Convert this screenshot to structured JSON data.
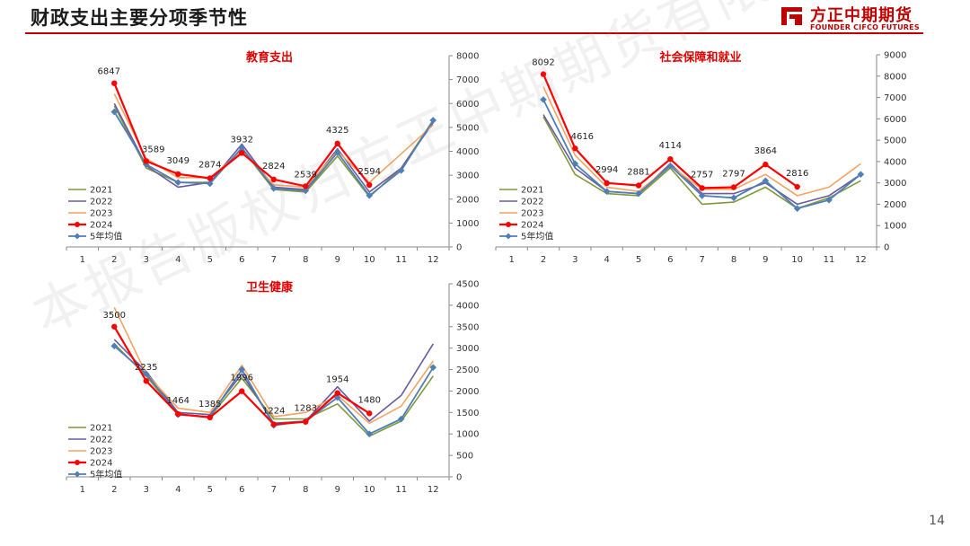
{
  "header": {
    "title": "财政支出主要分项季节性"
  },
  "logo": {
    "name_cn": "方正中期期货",
    "name_en": "FOUNDER CIFCO FUTURES",
    "color": "#c00000"
  },
  "page_number": "14",
  "watermark": "本报告版权归方正中期期货有限公司所有",
  "colors": {
    "2021": "#7f9a3a",
    "2022": "#6a5aa0",
    "2023": "#f4a460",
    "2024": "#ff0000",
    "5年均值": "#4f7fb6"
  },
  "chart_data": [
    {
      "type": "line",
      "title": "教育支出",
      "x": [
        1,
        2,
        3,
        4,
        5,
        6,
        7,
        8,
        9,
        10,
        11,
        12
      ],
      "ylim": [
        0,
        8000
      ],
      "ytick_step": 1000,
      "legend": [
        "2021",
        "2022",
        "2023",
        "2024",
        "5年均值"
      ],
      "series": [
        {
          "name": "2021",
          "values": [
            null,
            5900,
            3300,
            2700,
            2700,
            4100,
            2400,
            2300,
            3800,
            2100,
            3300,
            5300
          ]
        },
        {
          "name": "2022",
          "values": [
            null,
            6000,
            3400,
            2500,
            2700,
            4300,
            2500,
            2400,
            4100,
            2300,
            3300,
            5200
          ]
        },
        {
          "name": "2023",
          "values": [
            null,
            6400,
            3700,
            2900,
            2900,
            4000,
            2600,
            2500,
            4000,
            2700,
            3900,
            5100
          ]
        },
        {
          "name": "2024",
          "values": [
            null,
            6847,
            3589,
            3049,
            2874,
            3932,
            2824,
            2539,
            4325,
            2594,
            null,
            null
          ]
        },
        {
          "name": "5年均值",
          "values": [
            null,
            5650,
            3450,
            2700,
            2650,
            4150,
            2450,
            2350,
            3950,
            2150,
            3200,
            5300
          ]
        }
      ],
      "labels": [
        "6847",
        "3589",
        "3049",
        "2874",
        "3932",
        "2824",
        "2539",
        "4325",
        "2594"
      ]
    },
    {
      "type": "line",
      "title": "社会保障和就业",
      "x": [
        1,
        2,
        3,
        4,
        5,
        6,
        7,
        8,
        9,
        10,
        11,
        12
      ],
      "ylim": [
        0,
        9000
      ],
      "ytick_step": 1000,
      "legend": [
        "2021",
        "2022",
        "2023",
        "2024",
        "5年均值"
      ],
      "series": [
        {
          "name": "2021",
          "values": [
            null,
            6100,
            3400,
            2500,
            2400,
            3700,
            2000,
            2100,
            2800,
            1800,
            2300,
            3100
          ]
        },
        {
          "name": "2022",
          "values": [
            null,
            6200,
            3700,
            2600,
            2500,
            3900,
            2500,
            2500,
            3000,
            2000,
            2400,
            3400
          ]
        },
        {
          "name": "2023",
          "values": [
            null,
            7500,
            4300,
            2800,
            2600,
            3800,
            2700,
            2700,
            3400,
            2400,
            2800,
            3900
          ]
        },
        {
          "name": "2024",
          "values": [
            null,
            8092,
            4616,
            2994,
            2881,
            4114,
            2757,
            2797,
            3864,
            2816,
            null,
            null
          ]
        },
        {
          "name": "5年均值",
          "values": [
            null,
            6900,
            3900,
            2600,
            2500,
            3800,
            2400,
            2300,
            3100,
            1800,
            2200,
            3400
          ]
        }
      ],
      "labels": [
        "8092",
        "4616",
        "2994",
        "2881",
        "4114",
        "2757",
        "2797",
        "3864",
        "2816"
      ]
    },
    {
      "type": "line",
      "title": "卫生健康",
      "x": [
        1,
        2,
        3,
        4,
        5,
        6,
        7,
        8,
        9,
        10,
        11,
        12
      ],
      "ylim": [
        0,
        4500
      ],
      "ytick_step": 500,
      "legend": [
        "2021",
        "2022",
        "2023",
        "2024",
        "5年均值"
      ],
      "series": [
        {
          "name": "2021",
          "values": [
            null,
            3100,
            2350,
            1450,
            1400,
            2300,
            1350,
            1350,
            1700,
            950,
            1300,
            2350
          ]
        },
        {
          "name": "2022",
          "values": [
            null,
            3200,
            2450,
            1500,
            1450,
            2400,
            1250,
            1300,
            2100,
            1300,
            1900,
            3100
          ]
        },
        {
          "name": "2023",
          "values": [
            null,
            3950,
            2400,
            1600,
            1500,
            2600,
            1400,
            1500,
            1900,
            1250,
            1650,
            2700
          ]
        },
        {
          "name": "2024",
          "values": [
            null,
            3500,
            2235,
            1464,
            1385,
            1996,
            1224,
            1283,
            1954,
            1480,
            null,
            null
          ]
        },
        {
          "name": "5年均值",
          "values": [
            null,
            3050,
            2400,
            1450,
            1400,
            2500,
            1200,
            1300,
            1850,
            1000,
            1350,
            2550
          ]
        }
      ],
      "labels": [
        "3500",
        "2235",
        "1464",
        "1385",
        "1996",
        "1224",
        "1283",
        "1954",
        "1480"
      ]
    }
  ]
}
